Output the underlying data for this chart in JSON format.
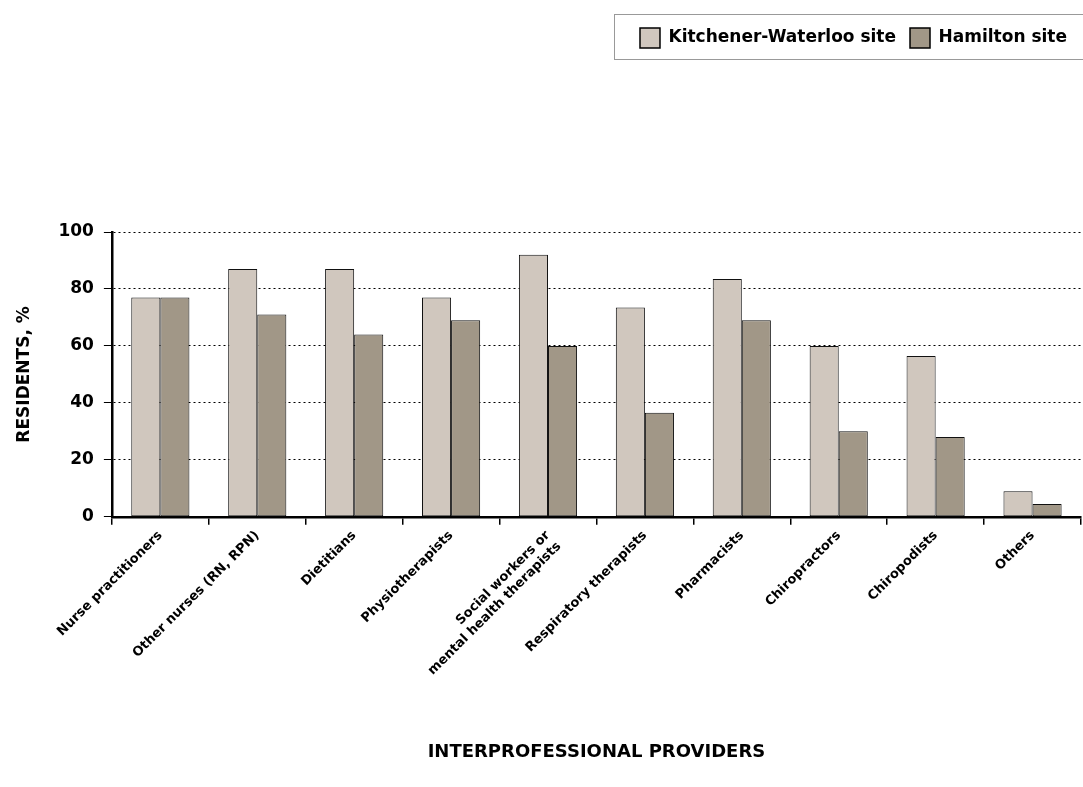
{
  "chart_data": {
    "type": "bar",
    "xlabel": "INTERPROFESSIONAL PROVIDERS",
    "ylabel": "RESIDENTS, %",
    "categories": [
      "Nurse practitioners",
      "Other nurses (RN, RPN)",
      "Dietitians",
      "Physiotherapists",
      "Social workers or mental health therapists",
      "Respiratory therapists",
      "Pharmacists",
      "Chiropractors",
      "Chiropodists",
      "Others"
    ],
    "series": [
      {
        "name": "Kitchener-Waterloo site",
        "color": "#d0c7be",
        "values": [
          77,
          87,
          87,
          77,
          92,
          73.5,
          83.5,
          60,
          56.5,
          9
        ]
      },
      {
        "name": "Hamilton site",
        "color": "#a19787",
        "values": [
          77,
          71,
          64,
          69,
          60,
          36.5,
          69,
          30,
          28,
          4.5
        ]
      }
    ],
    "ylim": [
      0,
      100
    ],
    "yticks": [
      0,
      20,
      40,
      60,
      80,
      100
    ],
    "grid": "y",
    "legend": "top right"
  }
}
